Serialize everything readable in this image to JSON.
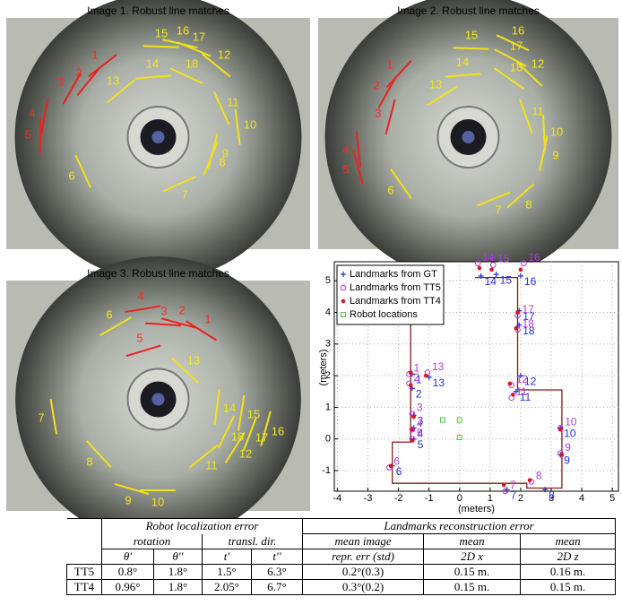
{
  "images": [
    {
      "title": "Image 1. Robust line matches",
      "labels": [
        "1",
        "2",
        "3",
        "4",
        "5",
        "6",
        "7",
        "8",
        "9",
        "10",
        "11",
        "12",
        "13",
        "14",
        "15",
        "16",
        "17",
        "18"
      ]
    },
    {
      "title": "Image 2. Robust line matches",
      "labels": [
        "1",
        "2",
        "3",
        "4",
        "5",
        "6",
        "7",
        "8",
        "9",
        "10",
        "11",
        "12",
        "13",
        "14",
        "15",
        "16",
        "17",
        "18"
      ]
    },
    {
      "title": "Image 3. Robust line matches",
      "labels": [
        "1",
        "2",
        "3",
        "4",
        "5",
        "6",
        "7",
        "8",
        "9",
        "10",
        "11",
        "12",
        "13",
        "14",
        "15",
        "16",
        "17",
        "18"
      ]
    }
  ],
  "chart_data": {
    "type": "scatter",
    "xlabel": "(meters)",
    "ylabel": "(meters)",
    "xlim": [
      -4.1,
      5.2
    ],
    "ylim": [
      -1.65,
      5.6
    ],
    "xticks": [
      -4,
      -3,
      -2,
      -1,
      0,
      1,
      2,
      3,
      4,
      5
    ],
    "yticks": [
      -1,
      0,
      1,
      2,
      3,
      4,
      5
    ],
    "grid": true,
    "legend": "upper left",
    "series": [
      {
        "name": "Landmarks from GT",
        "color": "#1c2fd6",
        "marker": "plus",
        "x": [
          -1.55,
          -1.55,
          -1.5,
          -1.5,
          -1.5,
          -2.2,
          1.55,
          2.8,
          3.3,
          3.3,
          1.85,
          2.0,
          -1.0,
          0.7,
          1.2,
          2.0,
          1.95,
          1.95
        ],
        "y": [
          2.05,
          1.6,
          0.75,
          0.35,
          0.0,
          -0.85,
          -1.6,
          -1.6,
          -0.5,
          0.35,
          1.5,
          2.0,
          1.95,
          5.15,
          5.2,
          5.15,
          4.05,
          3.6
        ],
        "labels": [
          "1",
          "2",
          "3",
          "4",
          "5",
          "6",
          "7",
          "8",
          "9",
          "10",
          "11",
          "12",
          "13",
          "14",
          "15",
          "16",
          "17",
          "18"
        ]
      },
      {
        "name": "Landmarks from TT5",
        "color": "#b23de0",
        "marker": "circle",
        "x": [
          -1.65,
          -1.65,
          -1.55,
          -1.55,
          -1.55,
          -2.3,
          1.5,
          2.35,
          3.3,
          3.3,
          1.7,
          1.7,
          -1.05,
          0.6,
          1.1,
          2.1,
          1.9,
          1.9
        ],
        "y": [
          2.05,
          1.75,
          0.8,
          0.3,
          0.0,
          -0.9,
          -1.65,
          -1.35,
          -0.45,
          0.35,
          1.3,
          1.7,
          2.1,
          5.55,
          5.5,
          5.55,
          3.9,
          3.45
        ],
        "labels": [
          "1",
          "2",
          "3",
          "4",
          "5",
          "6",
          "7",
          "8",
          "9",
          "10",
          "11",
          "12",
          "13",
          "14",
          "15",
          "16",
          "17",
          "18"
        ]
      },
      {
        "name": "Landmarks from TT4",
        "color": "#e0101e",
        "marker": "dot",
        "x": [
          -1.6,
          -1.6,
          -1.5,
          -1.55,
          -1.55,
          -2.25,
          1.45,
          2.3,
          3.35,
          3.3,
          1.75,
          1.65,
          -1.1,
          0.65,
          1.05,
          2.0,
          1.9,
          1.85
        ],
        "y": [
          2.1,
          1.7,
          0.7,
          0.3,
          -0.05,
          -0.85,
          -1.45,
          -1.3,
          -0.5,
          0.3,
          1.4,
          1.75,
          2.0,
          5.4,
          5.35,
          5.35,
          4.0,
          3.5
        ]
      },
      {
        "name": "Robot locations",
        "color": "#3fcf3f",
        "marker": "square",
        "x": [
          -0.55,
          0.0,
          0.0
        ],
        "y": [
          0.6,
          0.6,
          0.05
        ]
      }
    ],
    "outline": {
      "color": "#8b1a1a",
      "x": [
        -1.6,
        -1.6,
        -2.2,
        -2.2,
        2.2,
        2.2,
        3.35,
        3.35,
        1.9,
        1.9,
        0.5
      ],
      "y": [
        3.6,
        -0.1,
        -0.1,
        -1.4,
        -1.4,
        -1.55,
        -1.55,
        1.55,
        1.55,
        5.1,
        5.1
      ]
    }
  },
  "table": {
    "group_headers": [
      "Robot localization error",
      "Landmarks reconstruction error"
    ],
    "sub_headers": [
      "rotation",
      "transl. dir.",
      "mean image",
      "mean",
      "mean"
    ],
    "columns": [
      "θ′",
      "θ′′",
      "t′",
      "t′′",
      "repr. err (std)",
      "2D x",
      "2D z"
    ],
    "rows": [
      [
        "TT5",
        "0.8°",
        "1.8°",
        "1.5°",
        "6.3°",
        "0.2°(0.3)",
        "0.15 m.",
        "0.16 m."
      ],
      [
        "TT4",
        "0.96°",
        "1.8°",
        "2.05°",
        "6.7°",
        "0.3°(0.2)",
        "0.15 m.",
        "0.15 m."
      ]
    ]
  }
}
